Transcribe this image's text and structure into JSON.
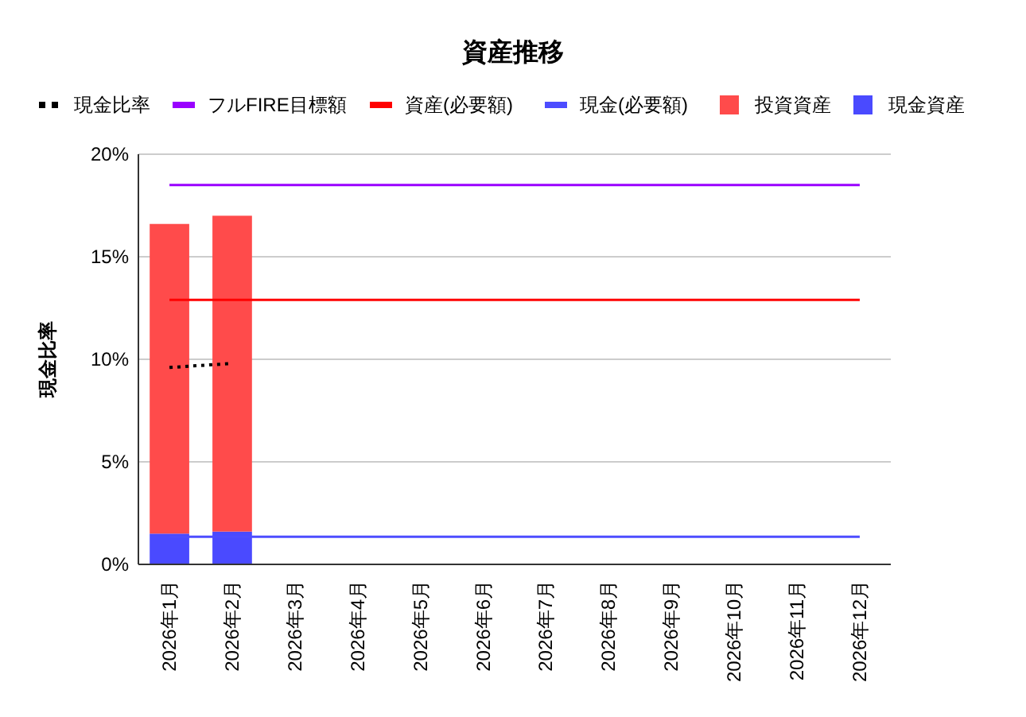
{
  "chart_data": {
    "type": "bar",
    "title": "資産推移",
    "ylabel": "現金比率",
    "categories": [
      "2026年1月",
      "2026年2月",
      "2026年3月",
      "2026年4月",
      "2026年5月",
      "2026年6月",
      "2026年7月",
      "2026年8月",
      "2026年9月",
      "2026年10月",
      "2026年11月",
      "2026年12月"
    ],
    "series": [
      {
        "name": "現金比率",
        "type": "line",
        "line_style": "dotted",
        "color": "#000000",
        "values": [
          9.6,
          9.8,
          null,
          null,
          null,
          null,
          null,
          null,
          null,
          null,
          null,
          null
        ]
      },
      {
        "name": "フルFIRE目標額",
        "type": "line",
        "color": "#9900ff",
        "values": [
          18.5,
          18.5,
          18.5,
          18.5,
          18.5,
          18.5,
          18.5,
          18.5,
          18.5,
          18.5,
          18.5,
          18.5
        ]
      },
      {
        "name": "資産(必要額)",
        "type": "line",
        "color": "#ff0000",
        "values": [
          12.9,
          12.9,
          12.9,
          12.9,
          12.9,
          12.9,
          12.9,
          12.9,
          12.9,
          12.9,
          12.9,
          12.9
        ]
      },
      {
        "name": "現金(必要額)",
        "type": "line",
        "color": "#4d4dff",
        "values": [
          1.35,
          1.35,
          1.35,
          1.35,
          1.35,
          1.35,
          1.35,
          1.35,
          1.35,
          1.35,
          1.35,
          1.35
        ]
      },
      {
        "name": "現金資産",
        "color": "#4a4aff",
        "values": [
          1.5,
          1.6,
          null,
          null,
          null,
          null,
          null,
          null,
          null,
          null,
          null,
          null
        ]
      },
      {
        "name": "投資資産",
        "color": "#ff4b4b",
        "values": [
          15.1,
          15.4,
          null,
          null,
          null,
          null,
          null,
          null,
          null,
          null,
          null,
          null
        ]
      }
    ],
    "stacked": true,
    "ylim": [
      0,
      20
    ],
    "yticks": [
      {
        "value": 0,
        "label": "0%"
      },
      {
        "value": 5,
        "label": "5%"
      },
      {
        "value": 10,
        "label": "10%"
      },
      {
        "value": 15,
        "label": "15%"
      },
      {
        "value": 20,
        "label": "20%"
      }
    ],
    "grid": "y",
    "legend": "top"
  }
}
